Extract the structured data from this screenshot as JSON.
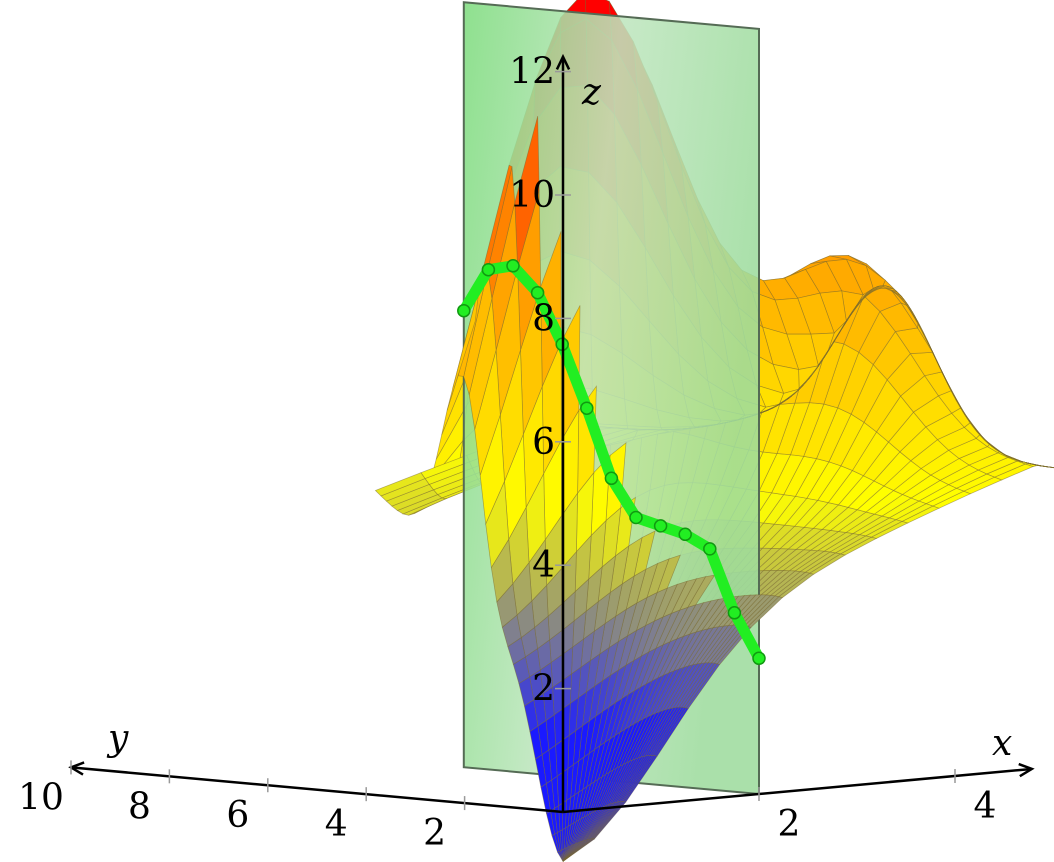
{
  "chart_data": {
    "type": "surface3d",
    "title": "",
    "x_axis": {
      "label": "x",
      "ticks": [
        2,
        4
      ],
      "range": [
        0,
        4.6
      ]
    },
    "y_axis": {
      "label": "y",
      "ticks": [
        2,
        4,
        6,
        8,
        10
      ],
      "range": [
        0,
        10
      ]
    },
    "z_axis": {
      "label": "z",
      "ticks": [
        2,
        4,
        6,
        8,
        10,
        12
      ],
      "range": [
        0,
        12
      ]
    },
    "grid": false,
    "legend": "none",
    "colormap": [
      "#1a1aff",
      "#ffff00",
      "#ffa500",
      "#ff0000"
    ],
    "slice_plane": {
      "x": 2,
      "y_range": [
        0,
        6
      ],
      "z_range": [
        0,
        12.4
      ],
      "color": "#33cc33"
    },
    "slice_curve": {
      "x": 2,
      "color": "#22ee22",
      "y": [
        0,
        0.5,
        1,
        1.5,
        2,
        2.5,
        3,
        3.5,
        4,
        4.5,
        5,
        5.5,
        6
      ],
      "z": [
        2.2,
        2.9,
        3.9,
        4.1,
        4.2,
        4.3,
        4.9,
        6.0,
        7.0,
        7.8,
        8.2,
        8.1,
        7.4
      ]
    },
    "peak": {
      "x": 2.6,
      "y": 4.5,
      "z": 12.4
    }
  }
}
